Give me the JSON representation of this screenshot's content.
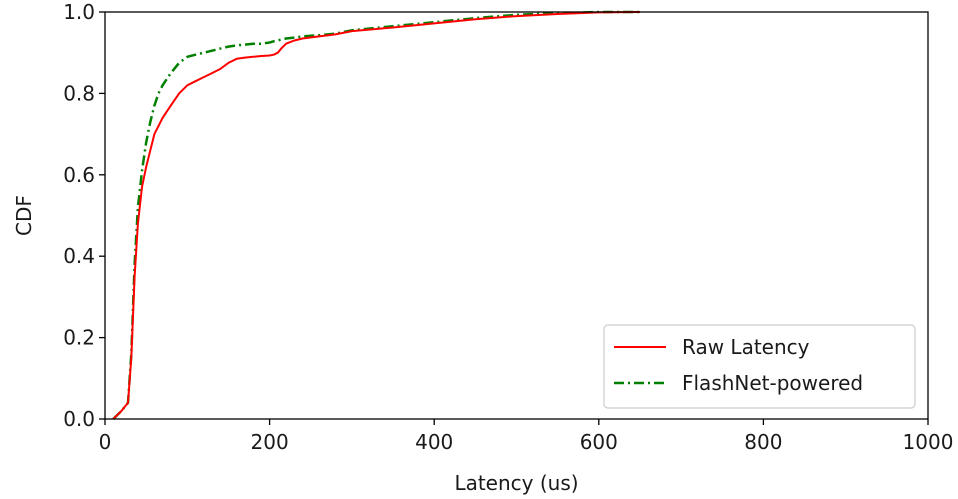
{
  "chart_data": {
    "type": "line",
    "title": "",
    "xlabel": "Latency (us)",
    "ylabel": "CDF",
    "xlim": [
      0,
      1000
    ],
    "ylim": [
      0.0,
      1.0
    ],
    "x_ticks": [
      "0",
      "200",
      "400",
      "600",
      "800",
      "1000"
    ],
    "y_ticks": [
      "0.0",
      "0.2",
      "0.4",
      "0.6",
      "0.8",
      "1.0"
    ],
    "grid": false,
    "legend_position": "lower-right",
    "series": [
      {
        "name": "Raw Latency",
        "color": "#ff0000",
        "line_style": "solid",
        "x": [
          10,
          20,
          28,
          32,
          36,
          40,
          45,
          50,
          55,
          60,
          65,
          70,
          80,
          90,
          100,
          110,
          120,
          130,
          140,
          150,
          160,
          170,
          180,
          190,
          200,
          205,
          210,
          215,
          220,
          230,
          240,
          260,
          280,
          300,
          350,
          400,
          450,
          500,
          550,
          600,
          650
        ],
        "y": [
          0.0,
          0.02,
          0.04,
          0.15,
          0.35,
          0.48,
          0.57,
          0.62,
          0.66,
          0.7,
          0.72,
          0.74,
          0.77,
          0.8,
          0.82,
          0.83,
          0.84,
          0.85,
          0.86,
          0.875,
          0.885,
          0.888,
          0.89,
          0.892,
          0.893,
          0.895,
          0.9,
          0.912,
          0.922,
          0.93,
          0.935,
          0.94,
          0.945,
          0.953,
          0.962,
          0.972,
          0.982,
          0.99,
          0.995,
          0.999,
          1.0
        ]
      },
      {
        "name": "FlashNet-powered",
        "color": "#008000",
        "line_style": "dashdot",
        "x": [
          10,
          20,
          28,
          32,
          36,
          40,
          45,
          50,
          55,
          60,
          65,
          70,
          80,
          90,
          100,
          110,
          120,
          130,
          140,
          150,
          160,
          170,
          180,
          190,
          200,
          205,
          210,
          215,
          220,
          230,
          240,
          260,
          280,
          300,
          350,
          400,
          450,
          500,
          550,
          600,
          650
        ],
        "y": [
          0.0,
          0.02,
          0.04,
          0.16,
          0.38,
          0.52,
          0.61,
          0.68,
          0.73,
          0.77,
          0.8,
          0.82,
          0.85,
          0.875,
          0.89,
          0.895,
          0.9,
          0.905,
          0.91,
          0.915,
          0.918,
          0.92,
          0.922,
          0.922,
          0.925,
          0.928,
          0.93,
          0.933,
          0.935,
          0.937,
          0.94,
          0.943,
          0.947,
          0.955,
          0.965,
          0.975,
          0.985,
          0.993,
          0.997,
          1.0,
          1.0
        ]
      }
    ]
  }
}
